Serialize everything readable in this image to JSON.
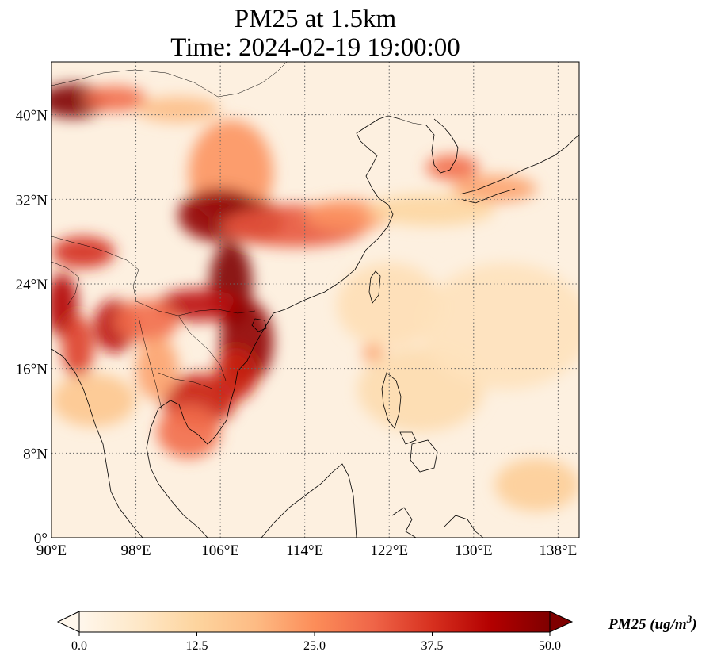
{
  "title": {
    "line1": "PM25 at 1.5km",
    "line2": "Time: 2024-02-19 19:00:00"
  },
  "map": {
    "lon_range": [
      90,
      140
    ],
    "lat_range": [
      0,
      45
    ],
    "lon_ticks": [
      {
        "value": 90,
        "label": "90°E"
      },
      {
        "value": 98,
        "label": "98°E"
      },
      {
        "value": 106,
        "label": "106°E"
      },
      {
        "value": 114,
        "label": "114°E"
      },
      {
        "value": 122,
        "label": "122°E"
      },
      {
        "value": 130,
        "label": "130°E"
      },
      {
        "value": 138,
        "label": "138°E"
      }
    ],
    "lat_ticks": [
      {
        "value": 0,
        "label": "0°"
      },
      {
        "value": 8,
        "label": "8°N"
      },
      {
        "value": 16,
        "label": "16°N"
      },
      {
        "value": 24,
        "label": "24°N"
      },
      {
        "value": 32,
        "label": "32°N"
      },
      {
        "value": 40,
        "label": "40°N"
      }
    ],
    "gridlines": "dotted",
    "hotspots": [
      {
        "lon": 92,
        "lat": 41.3,
        "rx": 3.2,
        "ry": 1.6,
        "value": 52
      },
      {
        "lon": 96,
        "lat": 41.5,
        "rx": 3,
        "ry": 1.2,
        "value": 30
      },
      {
        "lon": 102,
        "lat": 40.5,
        "rx": 4,
        "ry": 1.2,
        "value": 18
      },
      {
        "lon": 107,
        "lat": 34.5,
        "rx": 4,
        "ry": 5,
        "value": 24
      },
      {
        "lon": 106,
        "lat": 30.5,
        "rx": 4,
        "ry": 2.5,
        "value": 48
      },
      {
        "lon": 109,
        "lat": 30,
        "rx": 3,
        "ry": 2,
        "value": 50
      },
      {
        "lon": 113,
        "lat": 29.5,
        "rx": 7,
        "ry": 2,
        "value": 33
      },
      {
        "lon": 118,
        "lat": 30.5,
        "rx": 4,
        "ry": 1.5,
        "value": 24
      },
      {
        "lon": 107,
        "lat": 24,
        "rx": 2,
        "ry": 4,
        "value": 50
      },
      {
        "lon": 104,
        "lat": 22,
        "rx": 4,
        "ry": 1.5,
        "value": 42
      },
      {
        "lon": 108.5,
        "lat": 18.5,
        "rx": 2.5,
        "ry": 4,
        "value": 48
      },
      {
        "lon": 107.5,
        "lat": 15.5,
        "rx": 2,
        "ry": 2.5,
        "value": 40
      },
      {
        "lon": 104,
        "lat": 13,
        "rx": 3.5,
        "ry": 2.5,
        "value": 40
      },
      {
        "lon": 103,
        "lat": 10,
        "rx": 3,
        "ry": 2.5,
        "value": 30
      },
      {
        "lon": 93,
        "lat": 27,
        "rx": 3,
        "ry": 1.5,
        "value": 38
      },
      {
        "lon": 91,
        "lat": 22,
        "rx": 1.5,
        "ry": 3,
        "value": 44
      },
      {
        "lon": 92.5,
        "lat": 18,
        "rx": 1.5,
        "ry": 3,
        "value": 36
      },
      {
        "lon": 96,
        "lat": 20,
        "rx": 2,
        "ry": 2.5,
        "value": 42
      },
      {
        "lon": 99,
        "lat": 20.5,
        "rx": 3,
        "ry": 2,
        "value": 30
      },
      {
        "lon": 100,
        "lat": 16,
        "rx": 2,
        "ry": 3,
        "value": 22
      },
      {
        "lon": 94,
        "lat": 13,
        "rx": 4,
        "ry": 2.5,
        "value": 16
      },
      {
        "lon": 128,
        "lat": 35,
        "rx": 2.5,
        "ry": 1.2,
        "value": 30
      },
      {
        "lon": 132,
        "lat": 33,
        "rx": 4,
        "ry": 1.3,
        "value": 22
      },
      {
        "lon": 126,
        "lat": 31,
        "rx": 6,
        "ry": 1.5,
        "value": 12
      },
      {
        "lon": 120.5,
        "lat": 17.5,
        "rx": 1,
        "ry": 1,
        "value": 22
      },
      {
        "lon": 136,
        "lat": 5,
        "rx": 4,
        "ry": 2.5,
        "value": 14
      },
      {
        "lon": 122,
        "lat": 22,
        "rx": 5,
        "ry": 4,
        "value": 9
      },
      {
        "lon": 125,
        "lat": 14,
        "rx": 6,
        "ry": 4,
        "value": 10
      },
      {
        "lon": 133,
        "lat": 20,
        "rx": 8,
        "ry": 6,
        "value": 8
      }
    ]
  },
  "colorbar": {
    "min": 0,
    "max": 50,
    "extend": "both",
    "colormap": "OrRd",
    "ticks": [
      {
        "value": 0,
        "label": "0.0"
      },
      {
        "value": 12.5,
        "label": "12.5"
      },
      {
        "value": 25,
        "label": "25.0"
      },
      {
        "value": 37.5,
        "label": "37.5"
      },
      {
        "value": 50,
        "label": "50.0"
      }
    ],
    "label_html": "PM25 (ug/m<sup>3</sup>)",
    "label_text": "PM25 (ug/m",
    "label_sup": "3",
    "label_close": ")",
    "stops": [
      "#fff7ec",
      "#fee8c8",
      "#fdd49e",
      "#fdbb84",
      "#fc8d59",
      "#ef6548",
      "#d7301f",
      "#b30000",
      "#7f0000"
    ]
  }
}
